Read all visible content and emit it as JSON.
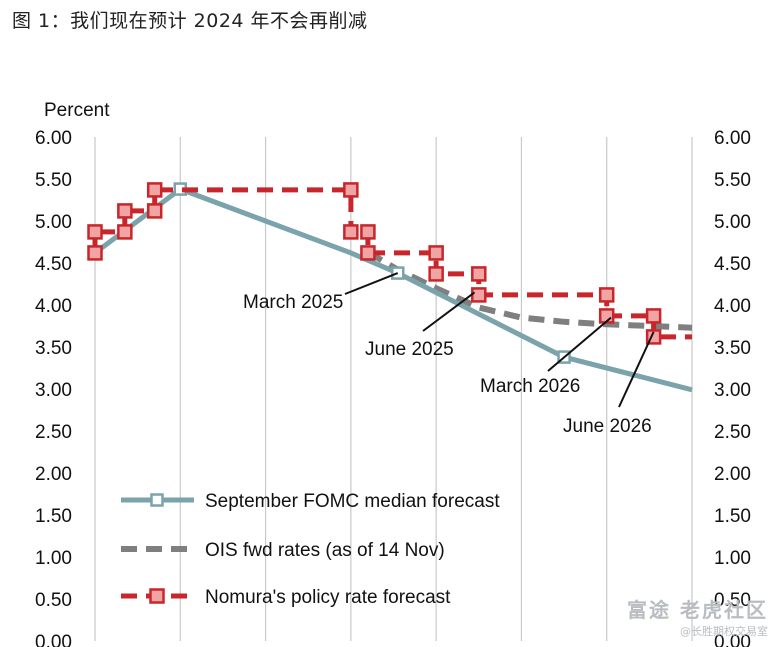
{
  "caption": "图 1：我们现在预计 2024 年不会再削减",
  "watermark": {
    "main": "老虎社区",
    "brand": "富途",
    "sub": "@长胜期权交易室"
  },
  "colors": {
    "fomc": "#7aa3ab",
    "ois": "#7f7f7f",
    "nomura": "#c8262b",
    "grid": "#c9c9c9"
  },
  "chart_data": {
    "type": "line",
    "ylabel": "Percent",
    "ylim": [
      0,
      6
    ],
    "yticks": [
      "0.00",
      "0.50",
      "1.00",
      "1.50",
      "2.00",
      "2.50",
      "3.00",
      "3.50",
      "4.00",
      "4.50",
      "5.00",
      "5.50",
      "6.00"
    ],
    "xlim": [
      0,
      7
    ],
    "series": [
      {
        "name": "September FOMC median forecast",
        "style": "solid-square",
        "x": [
          0.0,
          1.0,
          3.0,
          3.55,
          5.5,
          7.0
        ],
        "y": [
          4.62,
          5.38,
          4.62,
          4.38,
          3.38,
          2.99
        ],
        "markers": [
          1,
          3,
          4
        ]
      },
      {
        "name": "OIS fwd rates (as of 14 Nov)",
        "style": "dashed",
        "x": [
          3.2,
          3.55,
          4.0,
          4.5,
          5.0,
          5.5,
          6.0,
          6.5,
          7.0
        ],
        "y": [
          4.63,
          4.42,
          4.2,
          3.97,
          3.85,
          3.8,
          3.77,
          3.75,
          3.73
        ]
      },
      {
        "name": "Nomura's policy rate forecast",
        "style": "dashed-step",
        "x": [
          0.0,
          0.0,
          0.35,
          0.35,
          0.7,
          0.7,
          3.0,
          3.0,
          3.2,
          3.2,
          4.0,
          4.0,
          4.5,
          4.5,
          6.0,
          6.0,
          6.55,
          6.55,
          7.0
        ],
        "y": [
          4.62,
          4.87,
          4.87,
          5.12,
          5.12,
          5.37,
          5.37,
          4.87,
          4.87,
          4.62,
          4.62,
          4.37,
          4.37,
          4.12,
          4.12,
          3.87,
          3.87,
          3.62,
          3.62
        ],
        "markers": [
          0,
          1,
          2,
          3,
          4,
          5,
          6,
          7,
          8,
          9,
          10,
          11,
          12,
          13,
          14,
          15,
          16,
          17
        ]
      }
    ],
    "annotations": [
      {
        "text": "March 2025",
        "x": 3.55,
        "y": 4.38
      },
      {
        "text": "June 2025",
        "x": 4.45,
        "y": 4.15
      },
      {
        "text": "March 2026",
        "x": 6.05,
        "y": 3.85
      },
      {
        "text": "June 2026",
        "x": 6.55,
        "y": 3.68
      }
    ]
  }
}
